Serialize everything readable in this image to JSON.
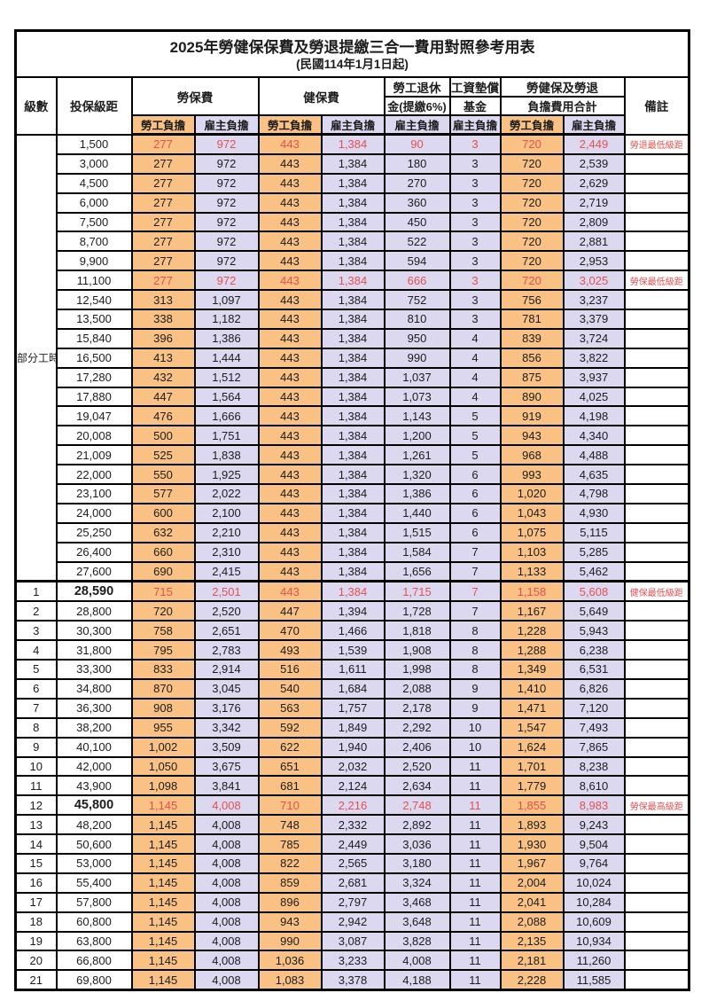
{
  "title": {
    "line1": "2025年勞健保保費及勞退提繳三合一費用對照參考用表",
    "line2": "(民國114年1月1日起)"
  },
  "header": {
    "level": "級數",
    "bracket": "投保級距",
    "labor_insurance": "勞保費",
    "health_insurance": "健保費",
    "pension_line1": "勞工退休",
    "pension_line2": "金(提繳6%)",
    "wage_fund_line1": "工資墊償",
    "wage_fund_line2": "基金",
    "total_line1": "勞健保及勞退",
    "total_line2": "負擔費用合計",
    "remark": "備註",
    "employee": "勞工負擔",
    "employer": "雇主負擔"
  },
  "part_time_label": "部分工時",
  "part_time_span": 23,
  "colors": {
    "employee_bg": "#F9C183",
    "employer_bg": "#DCD8F0",
    "red_text": "#E94F4F"
  },
  "rows": [
    {
      "level": "",
      "bracket": "1,500",
      "v": [
        "277",
        "972",
        "443",
        "1,384",
        "90",
        "3",
        "720",
        "2,449"
      ],
      "remark": "勞退最低級距",
      "red": true
    },
    {
      "level": "",
      "bracket": "3,000",
      "v": [
        "277",
        "972",
        "443",
        "1,384",
        "180",
        "3",
        "720",
        "2,539"
      ],
      "remark": ""
    },
    {
      "level": "",
      "bracket": "4,500",
      "v": [
        "277",
        "972",
        "443",
        "1,384",
        "270",
        "3",
        "720",
        "2,629"
      ],
      "remark": ""
    },
    {
      "level": "",
      "bracket": "6,000",
      "v": [
        "277",
        "972",
        "443",
        "1,384",
        "360",
        "3",
        "720",
        "2,719"
      ],
      "remark": ""
    },
    {
      "level": "",
      "bracket": "7,500",
      "v": [
        "277",
        "972",
        "443",
        "1,384",
        "450",
        "3",
        "720",
        "2,809"
      ],
      "remark": ""
    },
    {
      "level": "",
      "bracket": "8,700",
      "v": [
        "277",
        "972",
        "443",
        "1,384",
        "522",
        "3",
        "720",
        "2,881"
      ],
      "remark": ""
    },
    {
      "level": "",
      "bracket": "9,900",
      "v": [
        "277",
        "972",
        "443",
        "1,384",
        "594",
        "3",
        "720",
        "2,953"
      ],
      "remark": ""
    },
    {
      "level": "",
      "bracket": "11,100",
      "v": [
        "277",
        "972",
        "443",
        "1,384",
        "666",
        "3",
        "720",
        "3,025"
      ],
      "remark": "勞保最低級距",
      "red": true
    },
    {
      "level": "",
      "bracket": "12,540",
      "v": [
        "313",
        "1,097",
        "443",
        "1,384",
        "752",
        "3",
        "756",
        "3,237"
      ],
      "remark": ""
    },
    {
      "level": "",
      "bracket": "13,500",
      "v": [
        "338",
        "1,182",
        "443",
        "1,384",
        "810",
        "3",
        "781",
        "3,379"
      ],
      "remark": ""
    },
    {
      "level": "",
      "bracket": "15,840",
      "v": [
        "396",
        "1,386",
        "443",
        "1,384",
        "950",
        "4",
        "839",
        "3,724"
      ],
      "remark": ""
    },
    {
      "level": "",
      "bracket": "16,500",
      "v": [
        "413",
        "1,444",
        "443",
        "1,384",
        "990",
        "4",
        "856",
        "3,822"
      ],
      "remark": ""
    },
    {
      "level": "",
      "bracket": "17,280",
      "v": [
        "432",
        "1,512",
        "443",
        "1,384",
        "1,037",
        "4",
        "875",
        "3,937"
      ],
      "remark": ""
    },
    {
      "level": "",
      "bracket": "17,880",
      "v": [
        "447",
        "1,564",
        "443",
        "1,384",
        "1,073",
        "4",
        "890",
        "4,025"
      ],
      "remark": ""
    },
    {
      "level": "",
      "bracket": "19,047",
      "v": [
        "476",
        "1,666",
        "443",
        "1,384",
        "1,143",
        "5",
        "919",
        "4,198"
      ],
      "remark": ""
    },
    {
      "level": "",
      "bracket": "20,008",
      "v": [
        "500",
        "1,751",
        "443",
        "1,384",
        "1,200",
        "5",
        "943",
        "4,340"
      ],
      "remark": ""
    },
    {
      "level": "",
      "bracket": "21,009",
      "v": [
        "525",
        "1,838",
        "443",
        "1,384",
        "1,261",
        "5",
        "968",
        "4,488"
      ],
      "remark": ""
    },
    {
      "level": "",
      "bracket": "22,000",
      "v": [
        "550",
        "1,925",
        "443",
        "1,384",
        "1,320",
        "6",
        "993",
        "4,635"
      ],
      "remark": ""
    },
    {
      "level": "",
      "bracket": "23,100",
      "v": [
        "577",
        "2,022",
        "443",
        "1,384",
        "1,386",
        "6",
        "1,020",
        "4,798"
      ],
      "remark": ""
    },
    {
      "level": "",
      "bracket": "24,000",
      "v": [
        "600",
        "2,100",
        "443",
        "1,384",
        "1,440",
        "6",
        "1,043",
        "4,930"
      ],
      "remark": ""
    },
    {
      "level": "",
      "bracket": "25,250",
      "v": [
        "632",
        "2,210",
        "443",
        "1,384",
        "1,515",
        "6",
        "1,075",
        "5,115"
      ],
      "remark": ""
    },
    {
      "level": "",
      "bracket": "26,400",
      "v": [
        "660",
        "2,310",
        "443",
        "1,384",
        "1,584",
        "7",
        "1,103",
        "5,285"
      ],
      "remark": ""
    },
    {
      "level": "",
      "bracket": "27,600",
      "v": [
        "690",
        "2,415",
        "443",
        "1,384",
        "1,656",
        "7",
        "1,133",
        "5,462"
      ],
      "remark": ""
    },
    {
      "level": "1",
      "bracket": "28,590",
      "v": [
        "715",
        "2,501",
        "443",
        "1,384",
        "1,715",
        "7",
        "1,158",
        "5,608"
      ],
      "remark": "健保最低級距",
      "red": true,
      "bold_bracket": true,
      "section_start": true
    },
    {
      "level": "2",
      "bracket": "28,800",
      "v": [
        "720",
        "2,520",
        "447",
        "1,394",
        "1,728",
        "7",
        "1,167",
        "5,649"
      ],
      "remark": ""
    },
    {
      "level": "3",
      "bracket": "30,300",
      "v": [
        "758",
        "2,651",
        "470",
        "1,466",
        "1,818",
        "8",
        "1,228",
        "5,943"
      ],
      "remark": ""
    },
    {
      "level": "4",
      "bracket": "31,800",
      "v": [
        "795",
        "2,783",
        "493",
        "1,539",
        "1,908",
        "8",
        "1,288",
        "6,238"
      ],
      "remark": ""
    },
    {
      "level": "5",
      "bracket": "33,300",
      "v": [
        "833",
        "2,914",
        "516",
        "1,611",
        "1,998",
        "8",
        "1,349",
        "6,531"
      ],
      "remark": ""
    },
    {
      "level": "6",
      "bracket": "34,800",
      "v": [
        "870",
        "3,045",
        "540",
        "1,684",
        "2,088",
        "9",
        "1,410",
        "6,826"
      ],
      "remark": ""
    },
    {
      "level": "7",
      "bracket": "36,300",
      "v": [
        "908",
        "3,176",
        "563",
        "1,757",
        "2,178",
        "9",
        "1,471",
        "7,120"
      ],
      "remark": ""
    },
    {
      "level": "8",
      "bracket": "38,200",
      "v": [
        "955",
        "3,342",
        "592",
        "1,849",
        "2,292",
        "10",
        "1,547",
        "7,493"
      ],
      "remark": ""
    },
    {
      "level": "9",
      "bracket": "40,100",
      "v": [
        "1,002",
        "3,509",
        "622",
        "1,940",
        "2,406",
        "10",
        "1,624",
        "7,865"
      ],
      "remark": ""
    },
    {
      "level": "10",
      "bracket": "42,000",
      "v": [
        "1,050",
        "3,675",
        "651",
        "2,032",
        "2,520",
        "11",
        "1,701",
        "8,238"
      ],
      "remark": ""
    },
    {
      "level": "11",
      "bracket": "43,900",
      "v": [
        "1,098",
        "3,841",
        "681",
        "2,124",
        "2,634",
        "11",
        "1,779",
        "8,610"
      ],
      "remark": ""
    },
    {
      "level": "12",
      "bracket": "45,800",
      "v": [
        "1,145",
        "4,008",
        "710",
        "2,216",
        "2,748",
        "11",
        "1,855",
        "8,983"
      ],
      "remark": "勞保最高級距",
      "red": true,
      "bold_bracket": true
    },
    {
      "level": "13",
      "bracket": "48,200",
      "v": [
        "1,145",
        "4,008",
        "748",
        "2,332",
        "2,892",
        "11",
        "1,893",
        "9,243"
      ],
      "remark": ""
    },
    {
      "level": "14",
      "bracket": "50,600",
      "v": [
        "1,145",
        "4,008",
        "785",
        "2,449",
        "3,036",
        "11",
        "1,930",
        "9,504"
      ],
      "remark": ""
    },
    {
      "level": "15",
      "bracket": "53,000",
      "v": [
        "1,145",
        "4,008",
        "822",
        "2,565",
        "3,180",
        "11",
        "1,967",
        "9,764"
      ],
      "remark": ""
    },
    {
      "level": "16",
      "bracket": "55,400",
      "v": [
        "1,145",
        "4,008",
        "859",
        "2,681",
        "3,324",
        "11",
        "2,004",
        "10,024"
      ],
      "remark": ""
    },
    {
      "level": "17",
      "bracket": "57,800",
      "v": [
        "1,145",
        "4,008",
        "896",
        "2,797",
        "3,468",
        "11",
        "2,041",
        "10,284"
      ],
      "remark": ""
    },
    {
      "level": "18",
      "bracket": "60,800",
      "v": [
        "1,145",
        "4,008",
        "943",
        "2,942",
        "3,648",
        "11",
        "2,088",
        "10,609"
      ],
      "remark": ""
    },
    {
      "level": "19",
      "bracket": "63,800",
      "v": [
        "1,145",
        "4,008",
        "990",
        "3,087",
        "3,828",
        "11",
        "2,135",
        "10,934"
      ],
      "remark": ""
    },
    {
      "level": "20",
      "bracket": "66,800",
      "v": [
        "1,145",
        "4,008",
        "1,036",
        "3,233",
        "4,008",
        "11",
        "2,181",
        "11,260"
      ],
      "remark": ""
    },
    {
      "level": "21",
      "bracket": "69,800",
      "v": [
        "1,145",
        "4,008",
        "1,083",
        "3,378",
        "4,188",
        "11",
        "2,228",
        "11,585"
      ],
      "remark": ""
    }
  ]
}
